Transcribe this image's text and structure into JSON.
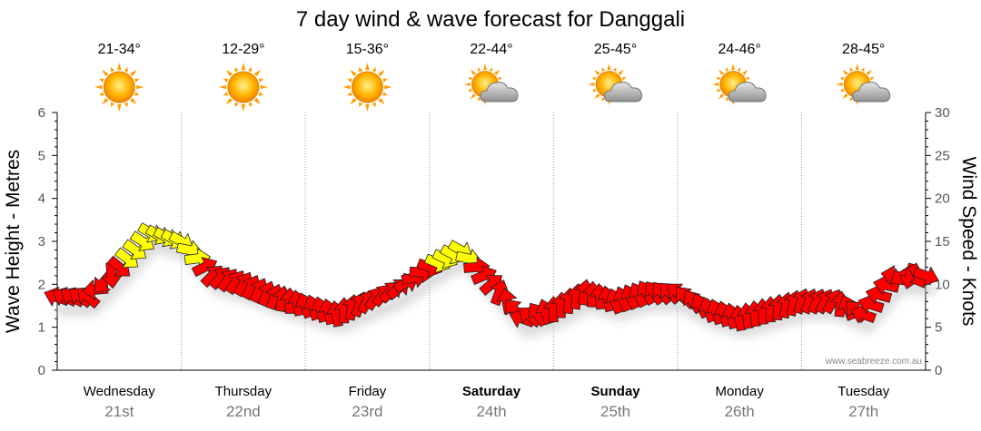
{
  "chart_data": {
    "type": "line",
    "title": "7 day wind & wave forecast for Danggali",
    "ylabel_left": "Wave Height - Metres",
    "ylabel_right": "Wind Speed - Knots",
    "ylim_left": [
      0,
      6
    ],
    "ylim_right": [
      0,
      30
    ],
    "yticks_left": [
      "0",
      "1",
      "2",
      "3",
      "4",
      "5",
      "6"
    ],
    "yticks_right": [
      "0",
      "5",
      "10",
      "15",
      "20",
      "25",
      "30"
    ],
    "days": [
      {
        "name": "Wednesday",
        "date": "21st",
        "temp": "21-34°",
        "icon": "sun-icon",
        "bold": false
      },
      {
        "name": "Thursday",
        "date": "22nd",
        "temp": "12-29°",
        "icon": "sun-icon",
        "bold": false
      },
      {
        "name": "Friday",
        "date": "23rd",
        "temp": "15-36°",
        "icon": "sun-icon",
        "bold": false
      },
      {
        "name": "Saturday",
        "date": "24th",
        "temp": "22-44°",
        "icon": "sun-cloud-icon",
        "bold": true
      },
      {
        "name": "Sunday",
        "date": "25th",
        "temp": "25-45°",
        "icon": "sun-cloud-icon",
        "bold": true
      },
      {
        "name": "Monday",
        "date": "26th",
        "temp": "24-46°",
        "icon": "sun-cloud-icon",
        "bold": false
      },
      {
        "name": "Tuesday",
        "date": "27th",
        "temp": "28-45°",
        "icon": "sun-cloud-icon",
        "bold": false
      }
    ],
    "series": [
      {
        "name": "Wind Speed (knots)",
        "x_hours": [
          0,
          6,
          12,
          18,
          24,
          30,
          36,
          42,
          48,
          54,
          60,
          66,
          72,
          78,
          84,
          90,
          96,
          102,
          108,
          114,
          120,
          126,
          132,
          138,
          144,
          150,
          156,
          162,
          168
        ],
        "values": [
          8.5,
          8.5,
          12,
          16,
          15,
          11,
          10,
          8.5,
          7.5,
          6.5,
          8,
          9.5,
          12,
          14,
          10,
          6,
          7,
          9,
          8,
          9,
          9,
          7,
          6,
          7,
          8,
          8,
          6.5,
          11,
          11
        ],
        "directions_deg": [
          200,
          220,
          40,
          30,
          30,
          315,
          300,
          290,
          250,
          260,
          300,
          320,
          20,
          30,
          320,
          200,
          270,
          280,
          250,
          240,
          220,
          250,
          260,
          270,
          290,
          300,
          200,
          190,
          20
        ],
        "color_calm": "#ff0000",
        "color_strong": "#ffff00",
        "strong_threshold_knots": 12.5
      }
    ]
  },
  "credit": "www.seabreeze.com.au",
  "colors": {
    "grid": "#999999",
    "axis": "#000000",
    "date": "#777777"
  }
}
